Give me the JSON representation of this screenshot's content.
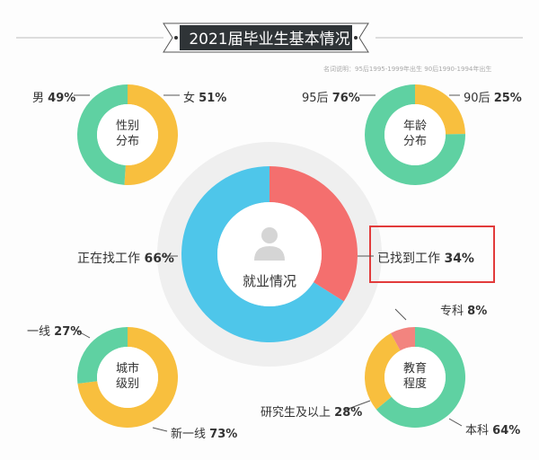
{
  "title": "2021届毕业生基本情况",
  "note": "名词说明：95后1995-1999年出生  90后1990-1994年出生",
  "colors": {
    "green": "#5fd1a2",
    "yellow": "#f8bf3e",
    "blue": "#4ec6ea",
    "red": "#f46f6e",
    "pink": "#f2847f",
    "halo": "#efefef",
    "banner": "#2f3437",
    "highlight": "#e23b3b"
  },
  "chart_data": [
    {
      "type": "pie",
      "title": "性别\n分布",
      "center_label": [
        "性别",
        "分布"
      ],
      "slices": [
        {
          "label": "女",
          "value": 51,
          "display": "51%",
          "color": "#f8bf3e"
        },
        {
          "label": "男",
          "value": 49,
          "display": "49%",
          "color": "#5fd1a2"
        }
      ]
    },
    {
      "type": "pie",
      "center_label": [
        "年龄",
        "分布"
      ],
      "slices": [
        {
          "label": "90后",
          "value": 25,
          "display": "25%",
          "color": "#f8bf3e"
        },
        {
          "label": "95后",
          "value": 76,
          "display": "76%",
          "color": "#5fd1a2"
        }
      ]
    },
    {
      "type": "pie",
      "center_label": [
        "就业情况"
      ],
      "slices": [
        {
          "label": "已找到工作",
          "value": 34,
          "display": "34%",
          "color": "#f46f6e"
        },
        {
          "label": "正在找工作",
          "value": 66,
          "display": "66%",
          "color": "#4ec6ea"
        }
      ]
    },
    {
      "type": "pie",
      "center_label": [
        "城市",
        "级别"
      ],
      "slices": [
        {
          "label": "新一线",
          "value": 73,
          "display": "73%",
          "color": "#f8bf3e"
        },
        {
          "label": "一线",
          "value": 27,
          "display": "27%",
          "color": "#5fd1a2"
        }
      ]
    },
    {
      "type": "pie",
      "center_label": [
        "教育",
        "程度"
      ],
      "slices": [
        {
          "label": "本科",
          "value": 64,
          "display": "64%",
          "color": "#5fd1a2"
        },
        {
          "label": "研究生及以上",
          "value": 28,
          "display": "28%",
          "color": "#f8bf3e"
        },
        {
          "label": "专科",
          "value": 8,
          "display": "8%",
          "color": "#f2847f"
        }
      ]
    }
  ]
}
